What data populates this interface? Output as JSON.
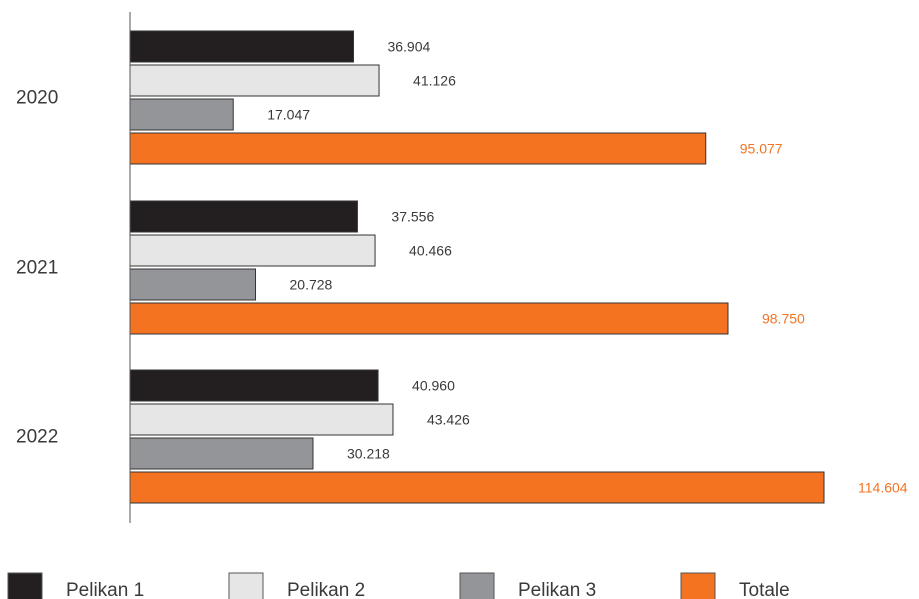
{
  "chart_data": {
    "type": "bar",
    "orientation": "horizontal",
    "categories": [
      "2020",
      "2021",
      "2022"
    ],
    "series": [
      {
        "name": "Pelikan 1",
        "values": [
          36904,
          37556,
          40960
        ],
        "labels": [
          "36.904",
          "37.556",
          "40.960"
        ],
        "color": "#231f20",
        "label_color": "#3a3a3a"
      },
      {
        "name": "Pelikan 2",
        "values": [
          41126,
          40466,
          43426
        ],
        "labels": [
          "41.126",
          "40.466",
          "43.426"
        ],
        "color": "#e6e6e6",
        "label_color": "#3a3a3a"
      },
      {
        "name": "Pelikan 3",
        "values": [
          17047,
          20728,
          30218
        ],
        "labels": [
          "17.047",
          "20.728",
          "30.218"
        ],
        "color": "#939598",
        "label_color": "#3a3a3a"
      },
      {
        "name": "Totale",
        "values": [
          95077,
          98750,
          114604
        ],
        "labels": [
          "95.077",
          "98.750",
          "114.604"
        ],
        "color": "#f47321",
        "label_color": "#f47321"
      }
    ],
    "xlim": [
      0,
      115000
    ],
    "grid": false,
    "legend_position": "bottom"
  }
}
